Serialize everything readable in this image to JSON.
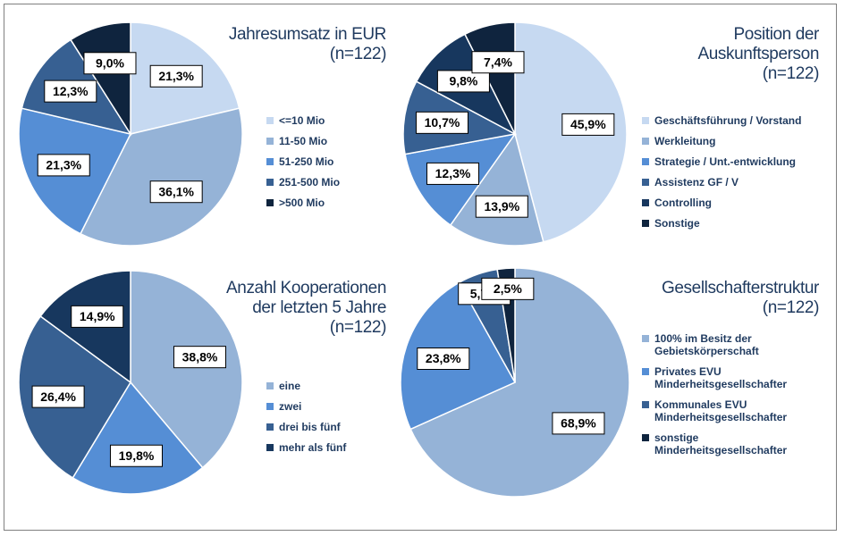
{
  "chart_data": [
    {
      "type": "pie",
      "title": "Jahresumsatz in EUR",
      "subtitle": "(n=122)",
      "categories": [
        "<=10 Mio",
        "11-50 Mio",
        "51-250 Mio",
        "251-500 Mio",
        ">500 Mio"
      ],
      "values": [
        21.3,
        36.1,
        21.3,
        12.3,
        9.0
      ],
      "value_labels": [
        "21,3%",
        "36,1%",
        "21,3%",
        "12,3%",
        "9,0%"
      ],
      "colors": [
        "#c6d9f1",
        "#95b3d7",
        "#558ed5",
        "#376092",
        "#0f243e"
      ]
    },
    {
      "type": "pie",
      "title": "Position der Auskunftsperson",
      "subtitle": "(n=122)",
      "categories": [
        "Geschäftsführung  / Vorstand",
        "Werkleitung",
        "Strategie / Unt.-entwicklung",
        "Assistenz GF / V",
        "Controlling",
        "Sonstige"
      ],
      "values": [
        45.9,
        13.9,
        12.3,
        10.7,
        9.8,
        7.4
      ],
      "value_labels": [
        "45,9%",
        "13,9%",
        "12,3%",
        "10,7%",
        "9,8%",
        "7,4%"
      ],
      "colors": [
        "#c6d9f1",
        "#95b3d7",
        "#558ed5",
        "#376092",
        "#17375e",
        "#0f243e"
      ]
    },
    {
      "type": "pie",
      "title": "Anzahl Kooperationen der letzten 5 Jahre",
      "subtitle": "(n=122)",
      "categories": [
        "eine",
        "zwei",
        "drei bis fünf",
        "mehr als fünf"
      ],
      "values": [
        38.8,
        19.8,
        26.4,
        14.9
      ],
      "value_labels": [
        "38,8%",
        "19,8%",
        "26,4%",
        "14,9%"
      ],
      "colors": [
        "#95b3d7",
        "#558ed5",
        "#376092",
        "#17375e"
      ]
    },
    {
      "type": "pie",
      "title": "Gesellschafterstruktur",
      "subtitle": "(n=122)",
      "categories": [
        "100% im Besitz der Gebietskörperschaft",
        "Privates EVU Minderheitsgesellschafter",
        "Kommunales EVU Minderheitsgesellschafter",
        "sonstige Minderheitsgesellschafter"
      ],
      "values": [
        68.9,
        23.8,
        5.7,
        2.5
      ],
      "value_labels": [
        "68,9%",
        "23,8%",
        "5,7%",
        "2,5%"
      ],
      "colors": [
        "#95b3d7",
        "#558ed5",
        "#376092",
        "#0f243e"
      ]
    }
  ]
}
